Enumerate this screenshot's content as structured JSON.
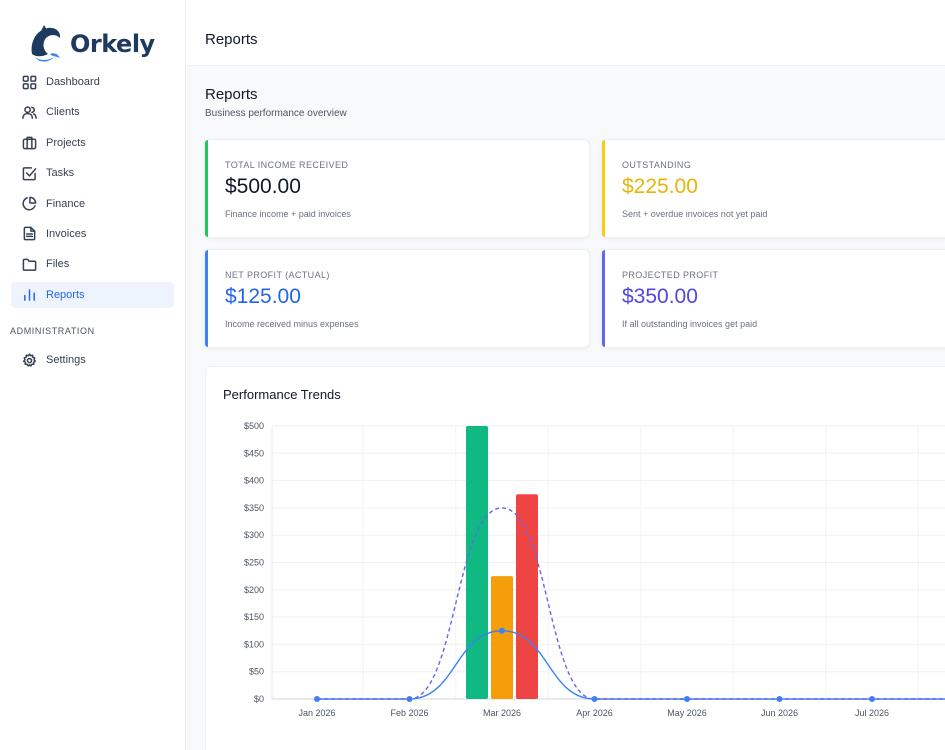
{
  "brand": {
    "name": "Orkely"
  },
  "sidebar": {
    "items": [
      {
        "label": "Dashboard",
        "icon": "dashboard-icon"
      },
      {
        "label": "Clients",
        "icon": "users-icon"
      },
      {
        "label": "Projects",
        "icon": "briefcase-icon"
      },
      {
        "label": "Tasks",
        "icon": "checkbox-icon"
      },
      {
        "label": "Finance",
        "icon": "pie-chart-icon"
      },
      {
        "label": "Invoices",
        "icon": "document-icon"
      },
      {
        "label": "Files",
        "icon": "folder-icon"
      },
      {
        "label": "Reports",
        "icon": "bar-chart-icon"
      }
    ],
    "active": "Reports",
    "section_admin": "ADMINISTRATION",
    "admin_items": [
      {
        "label": "Settings",
        "icon": "gear-icon"
      }
    ]
  },
  "header": {
    "title": "Reports"
  },
  "page": {
    "title": "Reports",
    "subtitle": "Business performance overview"
  },
  "cards": [
    {
      "label": "TOTAL INCOME RECEIVED",
      "value": "$500.00",
      "desc": "Finance income + paid invoices",
      "color": "#22c55e",
      "value_color": "#111827"
    },
    {
      "label": "OUTSTANDING",
      "value": "$225.00",
      "desc": "Sent + overdue invoices not yet paid",
      "color": "#facc15",
      "value_color": "#eab308"
    },
    {
      "label": "NET PROFIT (ACTUAL)",
      "value": "$125.00",
      "desc": "Income received minus expenses",
      "color": "#3b82f6",
      "value_color": "#2563eb"
    },
    {
      "label": "PROJECTED PROFIT",
      "value": "$350.00",
      "desc": "If all outstanding invoices get paid",
      "color": "#6366f1",
      "value_color": "#4f46e5"
    }
  ],
  "chart": {
    "title": "Performance Trends"
  },
  "chart_data": {
    "type": "bar",
    "title": "Performance Trends",
    "categories": [
      "Jan 2026",
      "Feb 2026",
      "Mar 2026",
      "Apr 2026",
      "May 2026",
      "Jun 2026",
      "Jul 2026"
    ],
    "ylim": [
      0,
      500
    ],
    "yticks": [
      "$0",
      "$50",
      "$100",
      "$150",
      "$200",
      "$250",
      "$300",
      "$350",
      "$400",
      "$450",
      "$500"
    ],
    "grid": true,
    "series": [
      {
        "type": "bar",
        "values": [
          0,
          0,
          500,
          0,
          0,
          0,
          0
        ],
        "color": "#10b981"
      },
      {
        "type": "bar",
        "values": [
          0,
          0,
          225,
          0,
          0,
          0,
          0
        ],
        "color": "#f59e0b"
      },
      {
        "type": "bar",
        "values": [
          0,
          0,
          375,
          0,
          0,
          0,
          0
        ],
        "color": "#ef4444"
      },
      {
        "type": "line",
        "style": "solid",
        "values": [
          0,
          0,
          125,
          0,
          0,
          0,
          0
        ],
        "color": "#3b82f6"
      },
      {
        "type": "line",
        "style": "dashed",
        "values": [
          0,
          0,
          350,
          0,
          0,
          0,
          0
        ],
        "color": "#6366f1"
      }
    ]
  }
}
